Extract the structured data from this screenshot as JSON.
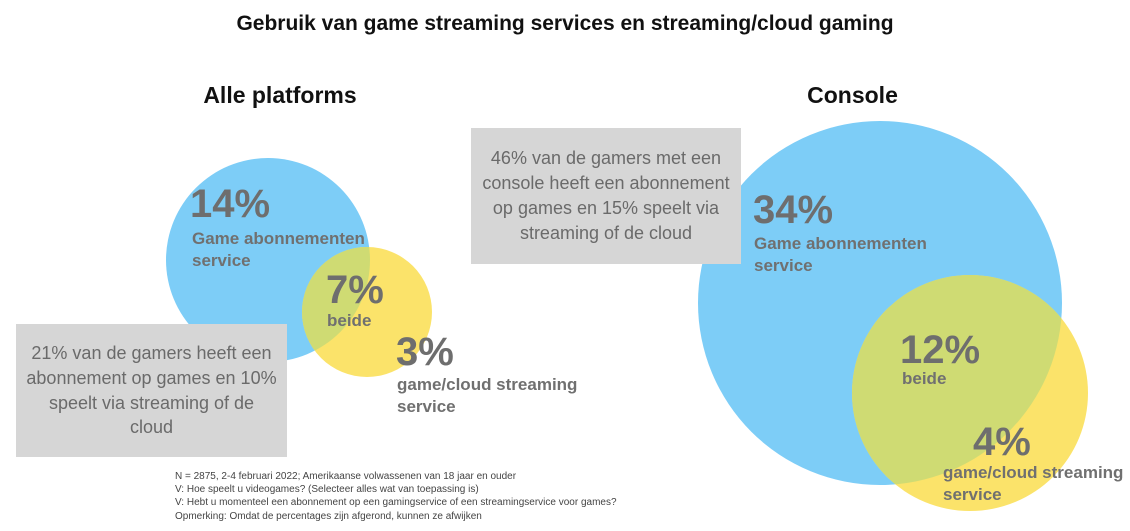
{
  "title": "Gebruik van game streaming services en streaming/cloud gaming",
  "colors": {
    "subscription_circle": "#7dcdf7",
    "streaming_circle": "#fbe36a",
    "overlap": "#cfdb73",
    "callout_box": "#d6d6d6"
  },
  "all_platforms": {
    "heading": "Alle platforms",
    "subscription_pct": "14%",
    "subscription_label": "Game abonnementen service",
    "overlap_pct": "7%",
    "overlap_label": "beide",
    "streaming_pct": "3%",
    "streaming_label": "game/cloud streaming service",
    "callout": "21% van de gamers heeft een abonnement op games en 10% speelt via streaming of de cloud"
  },
  "console": {
    "heading": "Console",
    "subscription_pct": "34%",
    "subscription_label": "Game abonnementen service",
    "overlap_pct": "12%",
    "overlap_label": "beide",
    "streaming_pct": "4%",
    "streaming_label": "game/cloud streaming service",
    "callout": "46% van de gamers met een console heeft een abonnement op games en 15% speelt via streaming of de cloud"
  },
  "notes": [
    "N = 2875, 2-4 februari 2022; Amerikaanse volwassenen van 18 jaar en ouder",
    "V: Hoe speelt u videogames? (Selecteer alles wat van toepassing is)",
    "V: Hebt u momenteel een abonnement op een gamingservice of een streamingservice voor games?",
    "Opmerking: Omdat de percentages zijn afgerond, kunnen ze afwijken"
  ]
}
